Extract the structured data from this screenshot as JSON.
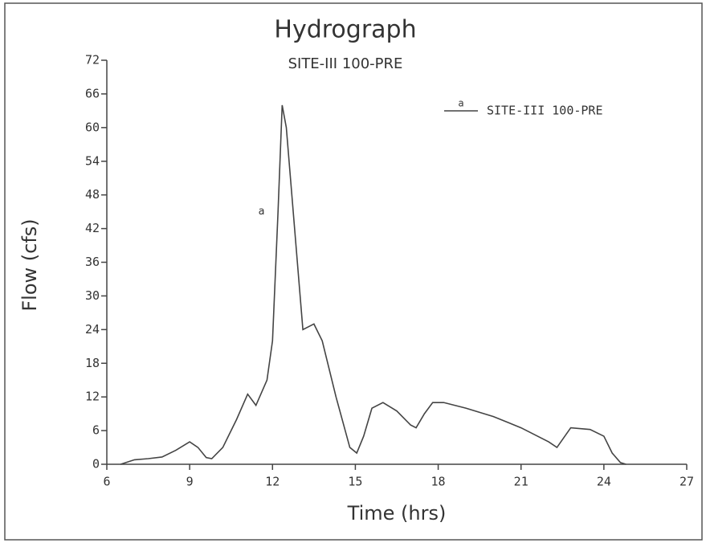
{
  "chart_data": {
    "type": "line",
    "title": "Hydrograph",
    "subtitle": "SITE-III 100-PRE",
    "x_label": "Time (hrs)",
    "y_label": "Flow (cfs)",
    "xlim": [
      6,
      27
    ],
    "xticks": [
      6,
      9,
      12,
      15,
      18,
      21,
      24,
      27
    ],
    "ylim": [
      0,
      72
    ],
    "yticks": [
      0,
      6,
      12,
      18,
      24,
      30,
      36,
      42,
      48,
      54,
      60,
      66,
      72
    ],
    "legend": "upper right",
    "marker": "a",
    "series": [
      {
        "name": "SITE-III 100-PRE",
        "color": "#444444",
        "x": [
          6.5,
          7,
          7.5,
          8,
          8.5,
          9,
          9.3,
          9.6,
          9.8,
          10.2,
          10.7,
          11.1,
          11.4,
          11.8,
          12.0,
          12.2,
          12.35,
          12.5,
          12.8,
          13.1,
          13.5,
          13.8,
          14.3,
          14.8,
          15.05,
          15.3,
          15.6,
          16,
          16.5,
          17,
          17.2,
          17.5,
          17.8,
          18.2,
          19,
          20,
          21,
          22,
          22.3,
          22.8,
          23.5,
          24,
          24.3,
          24.6,
          24.8
        ],
        "values": [
          0,
          0.8,
          1.0,
          1.3,
          2.5,
          4,
          3,
          1.2,
          1,
          3,
          8,
          12.5,
          10.5,
          15,
          22,
          45,
          64,
          60,
          42,
          24,
          25,
          22,
          12,
          3,
          2,
          5,
          10,
          11,
          9.5,
          7,
          6.5,
          9,
          11,
          11,
          10,
          8.5,
          6.5,
          4,
          3,
          6.5,
          6.2,
          5,
          2,
          0.3,
          0
        ],
        "marker_at": [
          11.6,
          45
        ]
      }
    ]
  }
}
